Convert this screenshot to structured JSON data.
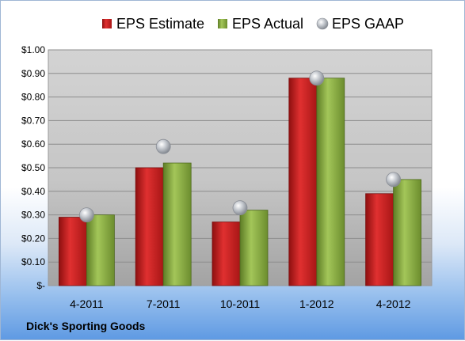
{
  "company": "Dick's Sporting Goods",
  "colors": {
    "estimate": "#cc1f1f",
    "actual": "#8db044",
    "gaap": "#b8bcc4"
  },
  "chart_data": {
    "type": "bar",
    "categories": [
      "4-2011",
      "7-2011",
      "10-2011",
      "1-2012",
      "4-2012"
    ],
    "series": [
      {
        "name": "EPS Estimate",
        "type": "bar",
        "values": [
          0.29,
          0.5,
          0.27,
          0.88,
          0.39
        ]
      },
      {
        "name": "EPS Actual",
        "type": "bar",
        "values": [
          0.3,
          0.52,
          0.32,
          0.88,
          0.45
        ]
      },
      {
        "name": "EPS GAAP",
        "type": "scatter",
        "values": [
          0.3,
          0.59,
          0.33,
          0.88,
          0.45
        ]
      }
    ],
    "ylim": [
      0,
      1.0
    ],
    "yticks": [
      0,
      0.1,
      0.2,
      0.3,
      0.4,
      0.5,
      0.6,
      0.7,
      0.8,
      0.9,
      1.0
    ],
    "ytick_labels": [
      "$-",
      "$0.10",
      "$0.20",
      "$0.30",
      "$0.40",
      "$0.50",
      "$0.60",
      "$0.70",
      "$0.80",
      "$0.90",
      "$1.00"
    ],
    "grid": true,
    "legend": "top"
  }
}
